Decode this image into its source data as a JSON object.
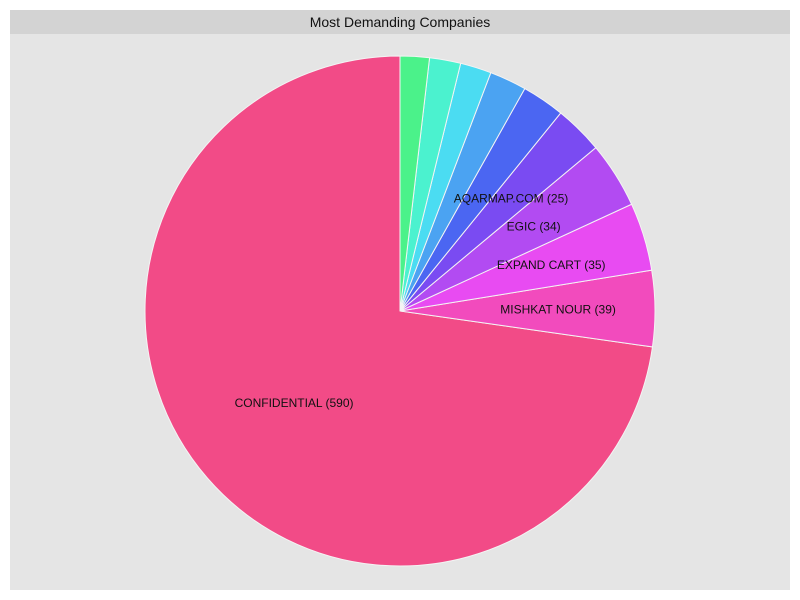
{
  "chart_data": {
    "type": "pie",
    "title": "Most Demanding Companies",
    "slices": [
      {
        "label": "CONFIDENTIAL (590)",
        "value": 590,
        "color": "#f24b87",
        "show_label": true
      },
      {
        "label": "MISHKAT NOUR (39)",
        "value": 39,
        "color": "#f24bbd",
        "show_label": true
      },
      {
        "label": "EXPAND CART (35)",
        "value": 35,
        "color": "#e84bf2",
        "show_label": true
      },
      {
        "label": "EGIC (34)",
        "value": 34,
        "color": "#b24bf2",
        "show_label": true
      },
      {
        "label": "AQARMAP.COM (25)",
        "value": 25,
        "color": "#7a4bf2",
        "show_label": true
      },
      {
        "label": "",
        "value": 22,
        "color": "#4b66f2",
        "show_label": false
      },
      {
        "label": "",
        "value": 19,
        "color": "#4ba3f2",
        "show_label": false
      },
      {
        "label": "",
        "value": 16,
        "color": "#4bdcf2",
        "show_label": false
      },
      {
        "label": "",
        "value": 16,
        "color": "#4bf2cf",
        "show_label": false
      },
      {
        "label": "",
        "value": 15,
        "color": "#4bf28a",
        "show_label": false
      }
    ],
    "start": "top",
    "direction": "counterclockwise",
    "background": "#e5e5e5",
    "title_bar_color": "#d3d3d3"
  }
}
